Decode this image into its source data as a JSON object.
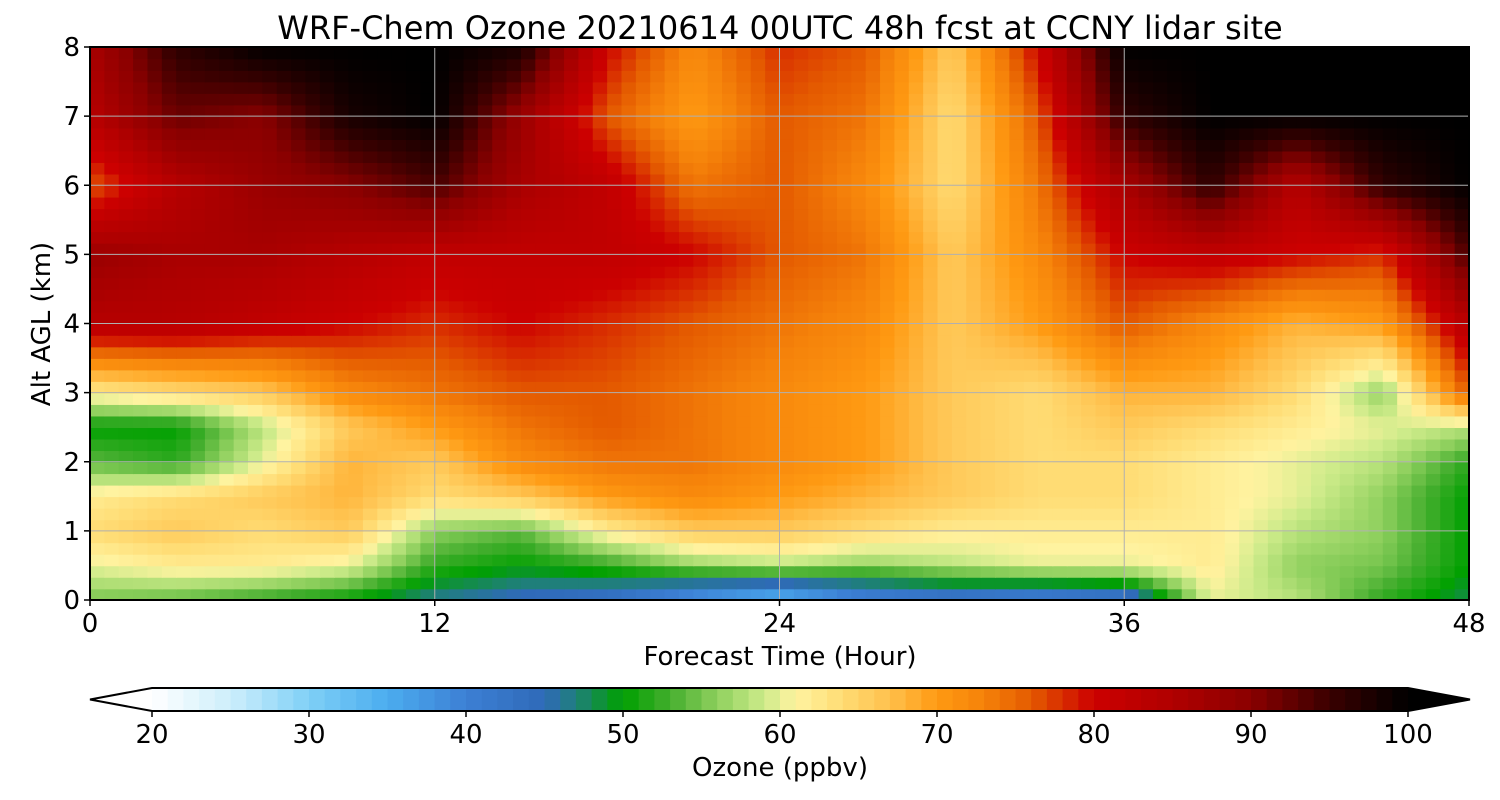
{
  "chart_data": {
    "type": "heatmap",
    "title": "WRF-Chem Ozone  20210614 00UTC 48h fcst at CCNY lidar site",
    "xlabel": "Forecast Time (Hour)",
    "ylabel": "Alt AGL (km)",
    "xlim": [
      0,
      48
    ],
    "ylim": [
      0,
      8
    ],
    "xticks": [
      0,
      12,
      24,
      36,
      48
    ],
    "yticks": [
      0,
      1,
      2,
      3,
      4,
      5,
      6,
      7,
      8
    ],
    "grid": true,
    "x": [
      0,
      3,
      6,
      9,
      12,
      15,
      18,
      21,
      24,
      27,
      30,
      33,
      36,
      39,
      42,
      45,
      48
    ],
    "y": [
      0,
      0.5,
      1,
      1.5,
      2,
      2.5,
      3,
      4,
      5,
      6,
      7,
      8
    ],
    "z": [
      [
        55,
        54,
        52,
        50,
        46,
        44,
        42,
        36,
        32,
        38,
        40,
        38,
        40,
        60,
        58,
        52,
        48
      ],
      [
        60,
        62,
        62,
        60,
        52,
        50,
        52,
        56,
        58,
        56,
        58,
        60,
        60,
        62,
        56,
        55,
        50
      ],
      [
        64,
        66,
        64,
        66,
        56,
        54,
        62,
        66,
        66,
        64,
        62,
        62,
        62,
        62,
        58,
        56,
        50
      ],
      [
        62,
        64,
        66,
        68,
        64,
        66,
        70,
        72,
        70,
        68,
        66,
        64,
        64,
        62,
        60,
        56,
        50
      ],
      [
        54,
        52,
        60,
        68,
        66,
        72,
        74,
        74,
        72,
        70,
        66,
        64,
        64,
        62,
        60,
        58,
        52
      ],
      [
        50,
        50,
        58,
        66,
        70,
        74,
        76,
        74,
        72,
        70,
        66,
        64,
        66,
        64,
        62,
        60,
        58
      ],
      [
        62,
        64,
        66,
        72,
        74,
        76,
        76,
        74,
        72,
        70,
        66,
        64,
        68,
        68,
        64,
        56,
        76
      ],
      [
        84,
        84,
        82,
        80,
        78,
        80,
        78,
        76,
        74,
        72,
        66,
        70,
        76,
        72,
        68,
        70,
        84
      ],
      [
        88,
        86,
        86,
        84,
        82,
        82,
        82,
        80,
        76,
        74,
        66,
        72,
        80,
        82,
        80,
        78,
        94
      ],
      [
        76,
        84,
        88,
        90,
        94,
        86,
        82,
        74,
        76,
        72,
        64,
        74,
        86,
        96,
        84,
        96,
        100
      ],
      [
        84,
        92,
        90,
        98,
        100,
        88,
        76,
        70,
        76,
        74,
        64,
        76,
        96,
        100,
        100,
        100,
        100
      ],
      [
        86,
        96,
        100,
        100,
        100,
        98,
        80,
        72,
        78,
        76,
        66,
        80,
        100,
        100,
        100,
        100,
        100
      ]
    ],
    "colorbar": {
      "label": "Ozone  (ppbv)",
      "min": 20,
      "max": 100,
      "ticks": [
        20,
        30,
        40,
        50,
        60,
        70,
        80,
        90,
        100
      ],
      "extend": "both",
      "stops": [
        {
          "v": 20,
          "c": "#ffffff"
        },
        {
          "v": 25,
          "c": "#cdeefb"
        },
        {
          "v": 30,
          "c": "#7fd0f6"
        },
        {
          "v": 35,
          "c": "#4bacef"
        },
        {
          "v": 40,
          "c": "#3c7fd4"
        },
        {
          "v": 45,
          "c": "#2f6ab8"
        },
        {
          "v": 47,
          "c": "#1f7f7a"
        },
        {
          "v": 50,
          "c": "#00a000"
        },
        {
          "v": 53,
          "c": "#44ae2e"
        },
        {
          "v": 56,
          "c": "#8fd05e"
        },
        {
          "v": 59,
          "c": "#cdeb8a"
        },
        {
          "v": 61,
          "c": "#fff3a0"
        },
        {
          "v": 64,
          "c": "#ffdc74"
        },
        {
          "v": 67,
          "c": "#ffc04c"
        },
        {
          "v": 70,
          "c": "#ff9a12"
        },
        {
          "v": 73,
          "c": "#f5820a"
        },
        {
          "v": 76,
          "c": "#e45a00"
        },
        {
          "v": 80,
          "c": "#cc0000"
        },
        {
          "v": 85,
          "c": "#b00000"
        },
        {
          "v": 90,
          "c": "#8a0000"
        },
        {
          "v": 95,
          "c": "#3a0000"
        },
        {
          "v": 100,
          "c": "#000000"
        }
      ]
    }
  }
}
